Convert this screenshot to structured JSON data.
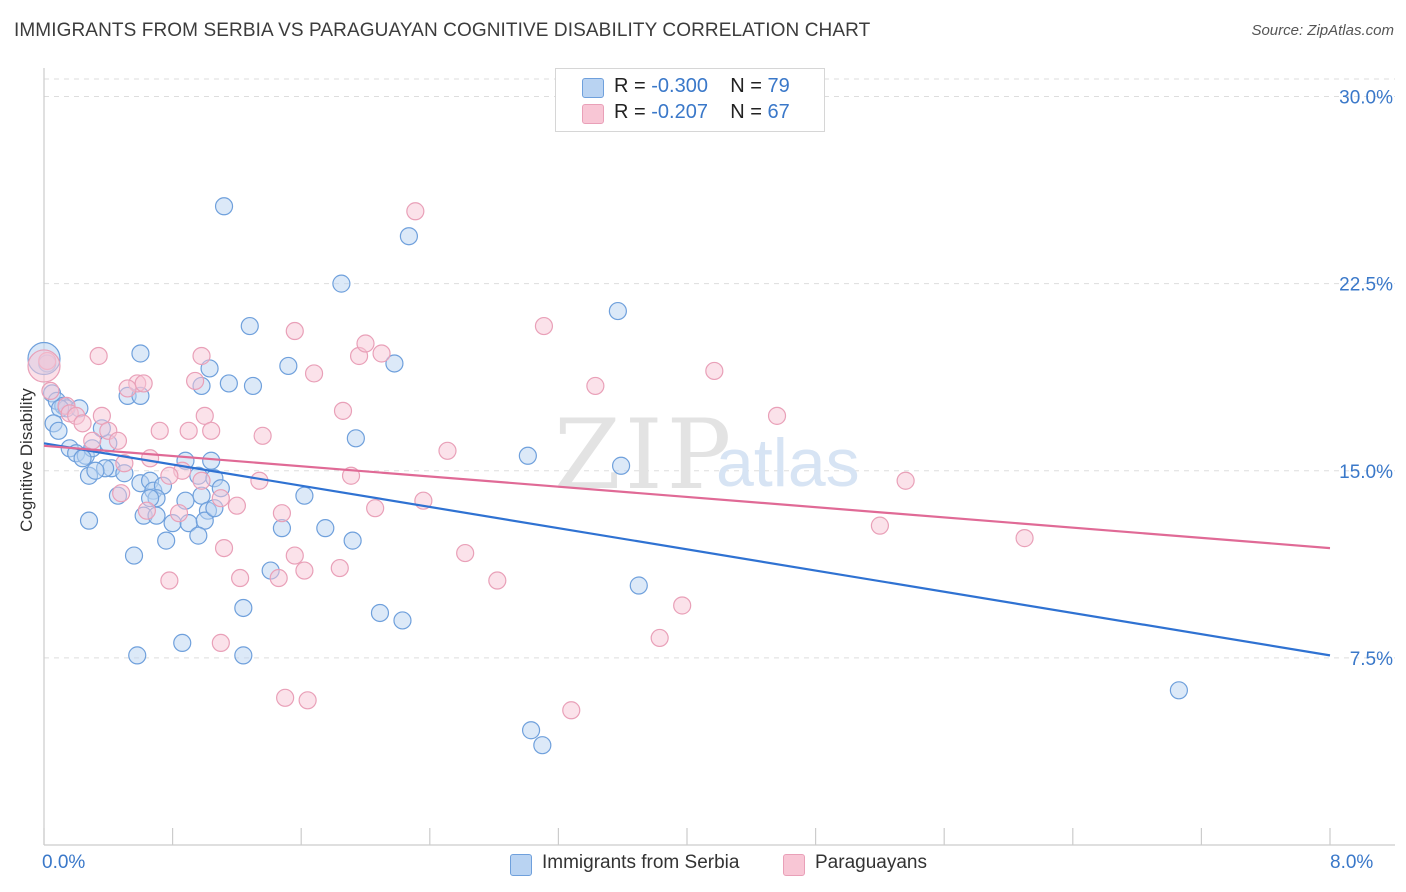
{
  "title": "IMMIGRANTS FROM SERBIA VS PARAGUAYAN COGNITIVE DISABILITY CORRELATION CHART",
  "source": "Source: ZipAtlas.com",
  "watermark": {
    "zip": "ZIP",
    "atlas": "atlas"
  },
  "legend": {
    "serbia": {
      "r_label": "R = ",
      "r_value": "-0.300",
      "n_label": "N = ",
      "n_value": "79"
    },
    "paraguay": {
      "r_label": "R = ",
      "r_value": "-0.207",
      "n_label": "N = ",
      "n_value": "67"
    }
  },
  "bottom_legend": {
    "serbia": "Immigrants from Serbia",
    "paraguay": "Paraguayans"
  },
  "colors": {
    "serbia_fill": "#b9d3f2",
    "serbia_stroke": "#6fa0dc",
    "serbia_line": "#2f72d2",
    "paraguay_fill": "#f8c6d5",
    "paraguay_stroke": "#e9a0b8",
    "paraguay_line": "#e06a96",
    "grid": "#dddddd",
    "tick_label": "#3a78c9"
  },
  "chart_data": {
    "type": "scatter",
    "title": "IMMIGRANTS FROM SERBIA VS PARAGUAYAN COGNITIVE DISABILITY CORRELATION CHART",
    "xlabel": "",
    "ylabel": "Cognitive Disability",
    "xlim": [
      0,
      8
    ],
    "ylim": [
      0,
      30
    ],
    "x_tick_labels": [
      "0.0%",
      "8.0%"
    ],
    "y_ticks": [
      7.5,
      15.0,
      22.5,
      30.0
    ],
    "y_tick_labels": [
      "7.5%",
      "15.0%",
      "22.5%",
      "30.0%"
    ],
    "grid": "horizontal dashed",
    "legend_position": "top-center",
    "series": [
      {
        "name": "Immigrants from Serbia",
        "r": -0.3,
        "n": 79,
        "trend": {
          "x": [
            0.0,
            8.0
          ],
          "y": [
            16.1,
            7.6
          ]
        },
        "points": [
          [
            0.02,
            19.3
          ],
          [
            0.05,
            18.1
          ],
          [
            0.08,
            17.8
          ],
          [
            0.12,
            17.6
          ],
          [
            0.14,
            17.5
          ],
          [
            0.1,
            17.5
          ],
          [
            0.06,
            16.9
          ],
          [
            0.09,
            16.6
          ],
          [
            0.22,
            17.5
          ],
          [
            0.16,
            15.9
          ],
          [
            0.2,
            15.7
          ],
          [
            0.26,
            15.6
          ],
          [
            0.3,
            15.9
          ],
          [
            0.4,
            16.1
          ],
          [
            0.36,
            16.7
          ],
          [
            0.42,
            15.1
          ],
          [
            0.38,
            15.1
          ],
          [
            0.24,
            15.5
          ],
          [
            0.28,
            14.8
          ],
          [
            0.32,
            15.0
          ],
          [
            0.46,
            14.0
          ],
          [
            0.5,
            14.9
          ],
          [
            0.6,
            14.5
          ],
          [
            0.66,
            14.6
          ],
          [
            0.68,
            14.2
          ],
          [
            0.74,
            14.4
          ],
          [
            0.7,
            13.9
          ],
          [
            0.88,
            13.8
          ],
          [
            0.98,
            14.0
          ],
          [
            1.02,
            13.4
          ],
          [
            0.62,
            13.2
          ],
          [
            0.8,
            12.9
          ],
          [
            0.9,
            12.9
          ],
          [
            1.0,
            13.0
          ],
          [
            1.06,
            13.5
          ],
          [
            0.96,
            12.4
          ],
          [
            0.76,
            12.2
          ],
          [
            0.28,
            13.0
          ],
          [
            0.56,
            11.6
          ],
          [
            0.88,
            15.4
          ],
          [
            1.04,
            15.4
          ],
          [
            0.96,
            14.8
          ],
          [
            1.06,
            14.7
          ],
          [
            1.15,
            18.5
          ],
          [
            1.3,
            18.4
          ],
          [
            1.03,
            19.1
          ],
          [
            0.52,
            18.0
          ],
          [
            0.6,
            18.0
          ],
          [
            0.98,
            18.4
          ],
          [
            0.6,
            19.7
          ],
          [
            1.12,
            25.6
          ],
          [
            1.28,
            20.8
          ],
          [
            1.52,
            19.2
          ],
          [
            1.85,
            22.5
          ],
          [
            2.27,
            24.4
          ],
          [
            2.18,
            19.3
          ],
          [
            1.94,
            16.3
          ],
          [
            1.62,
            14.0
          ],
          [
            1.48,
            12.7
          ],
          [
            1.75,
            12.7
          ],
          [
            1.92,
            12.2
          ],
          [
            1.41,
            11.0
          ],
          [
            1.24,
            9.5
          ],
          [
            1.24,
            7.6
          ],
          [
            2.09,
            9.3
          ],
          [
            2.23,
            9.0
          ],
          [
            3.01,
            15.6
          ],
          [
            3.59,
            15.2
          ],
          [
            3.57,
            21.4
          ],
          [
            3.7,
            10.4
          ],
          [
            3.03,
            4.6
          ],
          [
            3.1,
            4.0
          ],
          [
            0.58,
            7.6
          ],
          [
            0.86,
            8.1
          ],
          [
            1.1,
            14.3
          ],
          [
            0.7,
            13.2
          ],
          [
            0.66,
            13.9
          ],
          [
            7.06,
            6.2
          ],
          [
            0.0,
            19.5
          ]
        ]
      },
      {
        "name": "Paraguayans",
        "r": -0.207,
        "n": 67,
        "trend": {
          "x": [
            0.0,
            8.0
          ],
          "y": [
            16.0,
            11.9
          ]
        },
        "points": [
          [
            0.02,
            19.4
          ],
          [
            0.04,
            18.2
          ],
          [
            0.14,
            17.6
          ],
          [
            0.16,
            17.3
          ],
          [
            0.2,
            17.2
          ],
          [
            0.24,
            16.9
          ],
          [
            0.3,
            16.2
          ],
          [
            0.36,
            17.2
          ],
          [
            0.4,
            16.6
          ],
          [
            0.46,
            16.2
          ],
          [
            0.34,
            19.6
          ],
          [
            0.58,
            18.5
          ],
          [
            0.62,
            18.5
          ],
          [
            0.52,
            18.3
          ],
          [
            0.72,
            16.6
          ],
          [
            0.9,
            16.6
          ],
          [
            1.0,
            17.2
          ],
          [
            1.04,
            16.6
          ],
          [
            0.94,
            18.6
          ],
          [
            0.98,
            19.6
          ],
          [
            0.5,
            15.3
          ],
          [
            0.66,
            15.5
          ],
          [
            0.86,
            15.0
          ],
          [
            0.78,
            14.8
          ],
          [
            0.48,
            14.1
          ],
          [
            0.64,
            13.4
          ],
          [
            0.84,
            13.3
          ],
          [
            0.98,
            14.6
          ],
          [
            1.1,
            13.9
          ],
          [
            1.2,
            13.6
          ],
          [
            1.34,
            14.6
          ],
          [
            1.48,
            13.3
          ],
          [
            1.56,
            11.6
          ],
          [
            1.62,
            11.0
          ],
          [
            1.46,
            10.7
          ],
          [
            1.22,
            10.7
          ],
          [
            1.12,
            11.9
          ],
          [
            0.78,
            10.6
          ],
          [
            1.1,
            8.1
          ],
          [
            1.96,
            19.6
          ],
          [
            2.0,
            20.1
          ],
          [
            2.1,
            19.7
          ],
          [
            2.31,
            25.4
          ],
          [
            1.56,
            20.6
          ],
          [
            1.68,
            18.9
          ],
          [
            1.86,
            17.4
          ],
          [
            2.06,
            13.5
          ],
          [
            2.36,
            13.8
          ],
          [
            2.51,
            15.8
          ],
          [
            1.91,
            14.8
          ],
          [
            1.84,
            11.1
          ],
          [
            2.62,
            11.7
          ],
          [
            2.82,
            10.6
          ],
          [
            3.11,
            20.8
          ],
          [
            3.43,
            18.4
          ],
          [
            4.17,
            19.0
          ],
          [
            4.56,
            17.2
          ],
          [
            5.2,
            12.8
          ],
          [
            5.36,
            14.6
          ],
          [
            6.1,
            12.3
          ],
          [
            3.97,
            9.6
          ],
          [
            3.83,
            8.3
          ],
          [
            3.28,
            5.4
          ],
          [
            1.64,
            5.8
          ],
          [
            1.5,
            5.9
          ],
          [
            1.36,
            16.4
          ],
          [
            0.0,
            19.2
          ]
        ]
      }
    ]
  }
}
